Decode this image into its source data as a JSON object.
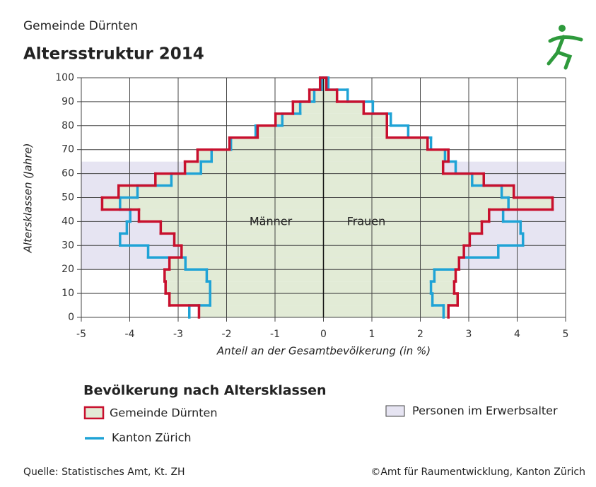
{
  "chart_data": {
    "type": "pyramid",
    "subtitle": "Gemeinde Dürnten",
    "title": "Altersstruktur 2014",
    "xlabel": "Anteil an der Gesamtbevölkerung (in %)",
    "ylabel": "Altersklassen (Jahre)",
    "left_label": "Männer",
    "right_label": "Frauen",
    "xlim": [
      -5,
      5
    ],
    "xticks": [
      -5,
      -4,
      -3,
      -2,
      -1,
      0,
      1,
      2,
      3,
      4,
      5
    ],
    "ylim": [
      0,
      100
    ],
    "yticks": [
      0,
      10,
      20,
      30,
      40,
      50,
      60,
      70,
      80,
      90,
      100
    ],
    "grid": true,
    "bins": [
      0,
      5,
      10,
      15,
      20,
      25,
      30,
      35,
      40,
      45,
      50,
      55,
      60,
      65,
      70,
      75,
      80,
      85,
      90,
      95,
      100
    ],
    "legend_title": "Bevölkerung nach Altersklassen",
    "series": [
      {
        "name": "Gemeinde Dürnten",
        "color": "#c8102e",
        "fill": "#e2ebd6",
        "left": [
          -2.57,
          -3.18,
          -3.26,
          -3.28,
          -3.18,
          -2.93,
          -3.08,
          -3.36,
          -3.81,
          -4.57,
          -4.23,
          -3.47,
          -2.86,
          -2.6,
          -1.94,
          -1.36,
          -0.99,
          -0.63,
          -0.29,
          -0.07
        ],
        "right": [
          2.58,
          2.77,
          2.7,
          2.73,
          2.8,
          2.9,
          3.02,
          3.27,
          3.42,
          4.73,
          3.93,
          3.31,
          2.47,
          2.58,
          2.15,
          1.31,
          1.31,
          0.83,
          0.28,
          0.06
        ]
      },
      {
        "name": "Kanton Zürich",
        "color": "#1fa3d6",
        "left": [
          -2.77,
          -2.34,
          -2.34,
          -2.41,
          -2.85,
          -3.62,
          -4.2,
          -4.06,
          -3.99,
          -4.2,
          -3.84,
          -3.14,
          -2.53,
          -2.31,
          -1.91,
          -1.4,
          -0.85,
          -0.48,
          -0.19,
          -0.04
        ],
        "right": [
          2.48,
          2.25,
          2.22,
          2.29,
          2.8,
          3.61,
          4.12,
          4.07,
          3.71,
          3.82,
          3.68,
          3.07,
          2.73,
          2.51,
          2.22,
          1.75,
          1.39,
          1.02,
          0.5,
          0.1
        ]
      }
    ],
    "band": {
      "name": "Personen im Erwerbsalter",
      "range": [
        20,
        65
      ],
      "color": "#e6e4f2"
    },
    "source": "Quelle: Statistisches Amt, Kt. ZH",
    "credit": "©Amt für Raumentwicklung, Kanton Zürich"
  }
}
